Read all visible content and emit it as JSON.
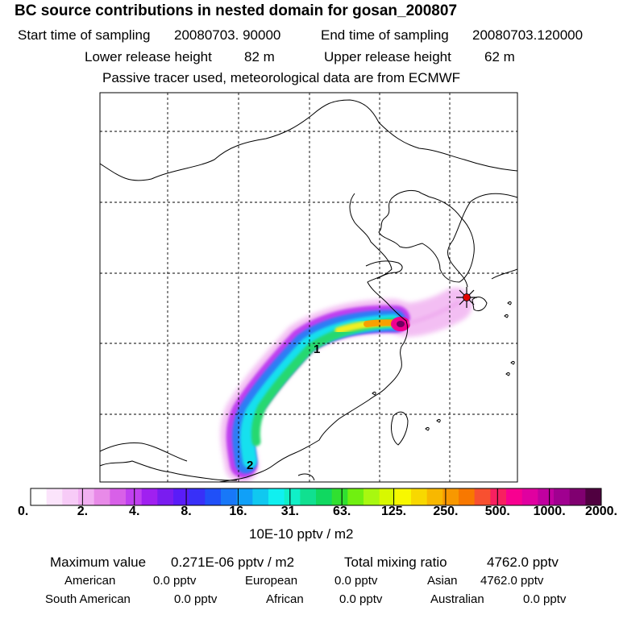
{
  "header": {
    "title": "BC  source contributions in nested domain for gosan_200807",
    "start_label": "Start time of sampling",
    "start_value": "20080703. 90000",
    "end_label": "End time of sampling",
    "end_value": "20080703.120000",
    "lower_label": "Lower release height",
    "lower_value": "82 m",
    "upper_label": "Upper release height",
    "upper_value": "62 m",
    "note": "Passive tracer used, meteorological data are from ECMWF"
  },
  "chart_data": {
    "type": "heatmap",
    "map_labels": [
      "1",
      "2"
    ],
    "colorbar": {
      "ticks": [
        "0.",
        "2.",
        "4.",
        "8.",
        "16.",
        "31.",
        "63.",
        "125.",
        "250.",
        "500.",
        "1000.",
        "2000."
      ],
      "colors": [
        "#ffffff",
        "#fbe4fb",
        "#f7cbf7",
        "#f2b0f2",
        "#e88ae8",
        "#d860e8",
        "#c040f0",
        "#a020f0",
        "#7a1cf0",
        "#5a1cf8",
        "#3830f8",
        "#2050f8",
        "#1878f8",
        "#10a0f8",
        "#10c8f0",
        "#10f0f0",
        "#10f0c8",
        "#10e090",
        "#10d860",
        "#30e030",
        "#70f010",
        "#a8f810",
        "#d8f800",
        "#f8f800",
        "#f8d800",
        "#f8b800",
        "#f89800",
        "#f87800",
        "#f85030",
        "#f82060",
        "#f80090",
        "#e000a0",
        "#c000a0",
        "#a00090",
        "#800070",
        "#500040"
      ],
      "unit": "10E-10 pptv / m2"
    }
  },
  "footer": {
    "max_label": "Maximum value",
    "max_value": "0.271E-06 pptv / m2",
    "total_label": "Total mixing ratio",
    "total_value": "4762.0 pptv",
    "american_label": "American",
    "american_value": "0.0 pptv",
    "european_label": "European",
    "european_value": "0.0 pptv",
    "asian_label": "Asian",
    "asian_value": "4762.0 pptv",
    "south_american_label": "South American",
    "south_american_value": "0.0 pptv",
    "african_label": "African",
    "african_value": "0.0 pptv",
    "australian_label": "Australian",
    "australian_value": "0.0 pptv"
  }
}
